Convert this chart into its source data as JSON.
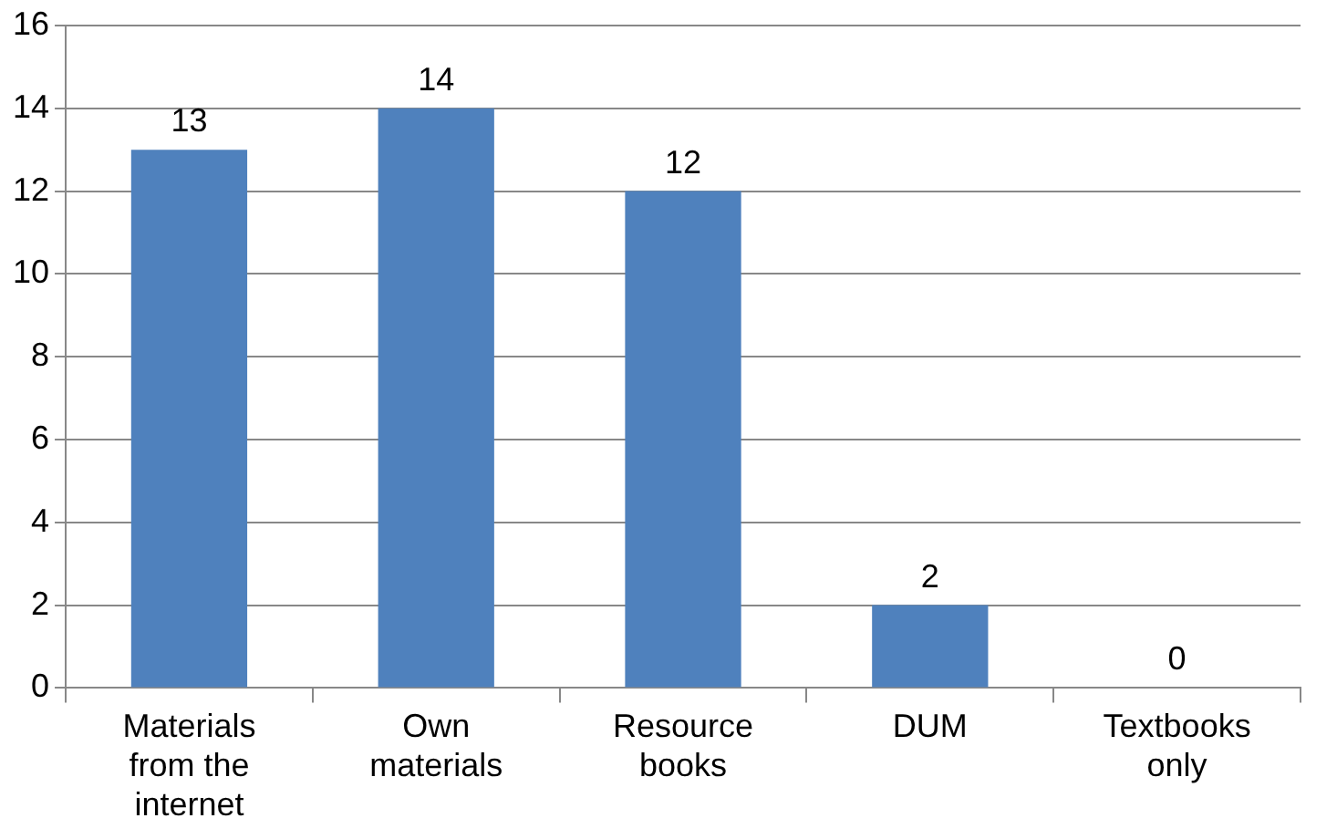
{
  "chart_data": {
    "type": "bar",
    "categories": [
      "Materials from the internet",
      "Own materials",
      "Resource books",
      "DUM",
      "Textbooks only"
    ],
    "values": [
      13,
      14,
      12,
      2,
      0
    ],
    "color": "#4f81bd",
    "ylim": [
      0,
      16
    ],
    "yticks": [
      0,
      2,
      4,
      6,
      8,
      10,
      12,
      14,
      16
    ],
    "grid": "y",
    "data_labels": true,
    "legend": false
  }
}
